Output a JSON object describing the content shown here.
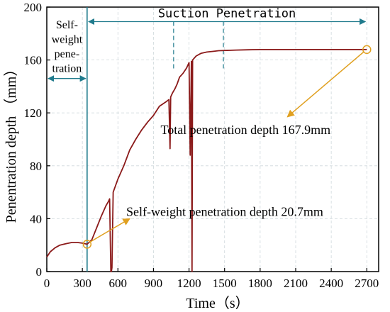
{
  "chart_data": {
    "type": "line",
    "xlabel": "Time（s）",
    "ylabel": "Penentration depth （mm）",
    "xlim": [
      0,
      2800
    ],
    "ylim": [
      0,
      200
    ],
    "x_ticks": [
      0,
      300,
      600,
      900,
      1200,
      1500,
      1800,
      2100,
      2400,
      2700
    ],
    "y_ticks": [
      0,
      40,
      80,
      120,
      160,
      200
    ],
    "grid": true,
    "colors": {
      "series": "#8b1a1a",
      "phase": "#1f7a8c",
      "annotation": "#e0a020"
    },
    "phases": [
      {
        "id": "self",
        "label_lines": [
          "Self-",
          "weight",
          "pene-",
          "tration"
        ],
        "x_range": [
          0,
          340
        ]
      },
      {
        "id": "suction",
        "label": "Suction Penetration",
        "x_range": [
          340,
          2700
        ]
      }
    ],
    "reference_line_x": 340,
    "dashed_marks_x": [
      1070,
      1490
    ],
    "series": [
      {
        "x": [
          0,
          30,
          70,
          110,
          160,
          210,
          260,
          300,
          340,
          380,
          420,
          460,
          500,
          520,
          530,
          540,
          545,
          550,
          560,
          600,
          650,
          700,
          750,
          800,
          850,
          900,
          950,
          1000,
          1030,
          1040,
          1045,
          1050,
          1060,
          1080,
          1100,
          1120,
          1150,
          1180,
          1200,
          1210,
          1220,
          1225,
          1230,
          1240,
          1260,
          1300,
          1350,
          1400,
          1450,
          1500,
          1600,
          1700,
          1800,
          2000,
          2200,
          2400,
          2600,
          2700
        ],
        "y": [
          11,
          15,
          18,
          20,
          21,
          22,
          22,
          21.5,
          20.7,
          24,
          33,
          42,
          50,
          53,
          55,
          0,
          0,
          3,
          60,
          70,
          80,
          92,
          100,
          107,
          113,
          118,
          125,
          128,
          130,
          93,
          132,
          133,
          135,
          138,
          142,
          147,
          150,
          154,
          158,
          88,
          159,
          0,
          160,
          161,
          163,
          165,
          166,
          166.5,
          167,
          167.2,
          167.5,
          167.7,
          167.9,
          167.9,
          167.9,
          167.9,
          167.9,
          167.9
        ]
      }
    ],
    "annotations": [
      {
        "text": "Self-weight penetration depth 20.7mm",
        "x": 340,
        "y": 20.7
      },
      {
        "text": "Total penetration depth 167.9mm",
        "x": 2700,
        "y": 167.9
      }
    ]
  }
}
